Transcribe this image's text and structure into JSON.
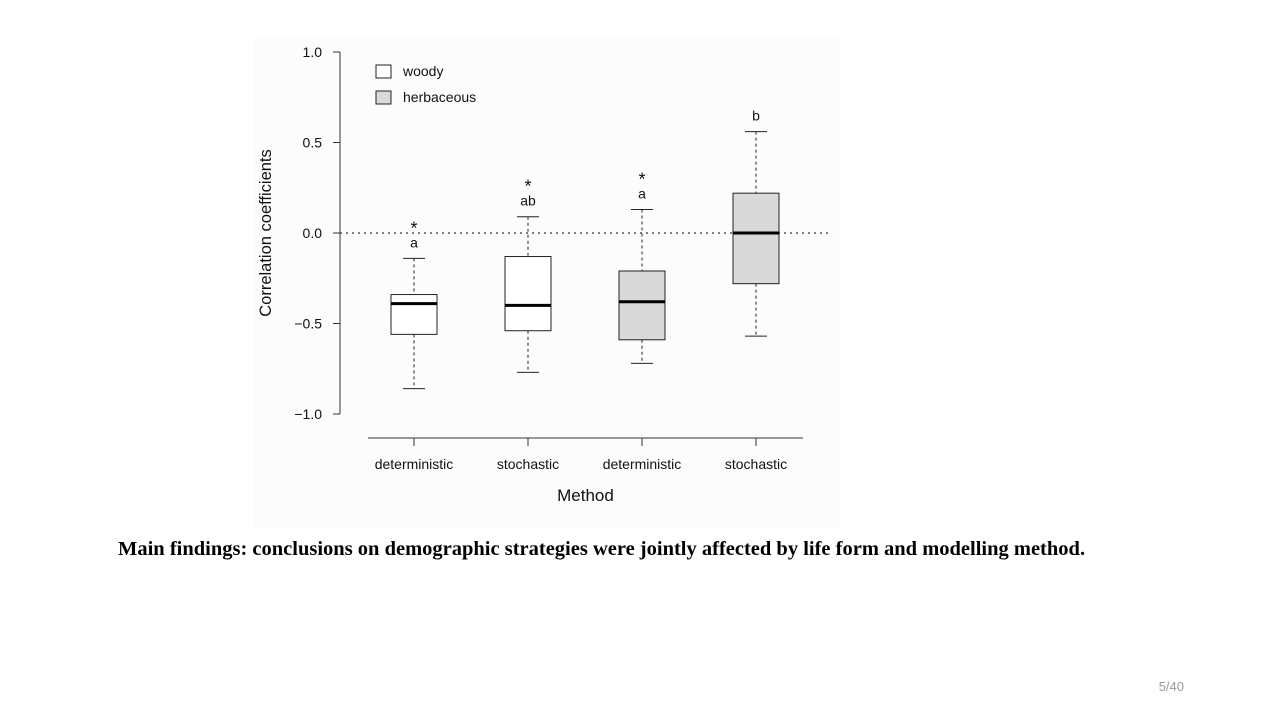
{
  "caption": "Main findings: conclusions on demographic strategies were jointly affected by life form and modelling method.",
  "slide_number": "5/40",
  "chart_data": {
    "type": "box",
    "xlabel": "Method",
    "ylabel": "Correlation coefficients",
    "ylim": [
      -1.0,
      1.0
    ],
    "yticks": [
      1.0,
      0.5,
      0.0,
      -0.5,
      -1.0
    ],
    "ytick_labels": [
      "1.0",
      "0.5",
      "0.0",
      "−0.5",
      "−1.0"
    ],
    "reference_line": 0.0,
    "grid": false,
    "legend_position": "top-left",
    "legend": [
      {
        "label": "woody",
        "color": "#ffffff"
      },
      {
        "label": "herbaceous",
        "color": "#d9d9d9"
      }
    ],
    "categories": [
      "deterministic",
      "stochastic",
      "deterministic",
      "stochastic"
    ],
    "boxes": [
      {
        "group": "woody",
        "min": -0.86,
        "q1": -0.56,
        "median": -0.39,
        "q3": -0.34,
        "max": -0.14,
        "letter": "a",
        "star": "*",
        "fill": "#ffffff"
      },
      {
        "group": "woody",
        "min": -0.77,
        "q1": -0.54,
        "median": -0.4,
        "q3": -0.13,
        "max": 0.09,
        "letter": "ab",
        "star": "*",
        "fill": "#ffffff"
      },
      {
        "group": "herbaceous",
        "min": -0.72,
        "q1": -0.59,
        "median": -0.38,
        "q3": -0.21,
        "max": 0.13,
        "letter": "a",
        "star": "*",
        "fill": "#d9d9d9"
      },
      {
        "group": "herbaceous",
        "min": -0.57,
        "q1": -0.28,
        "median": 0.0,
        "q3": 0.22,
        "max": 0.56,
        "letter": "b",
        "star": "",
        "fill": "#d9d9d9"
      }
    ]
  }
}
